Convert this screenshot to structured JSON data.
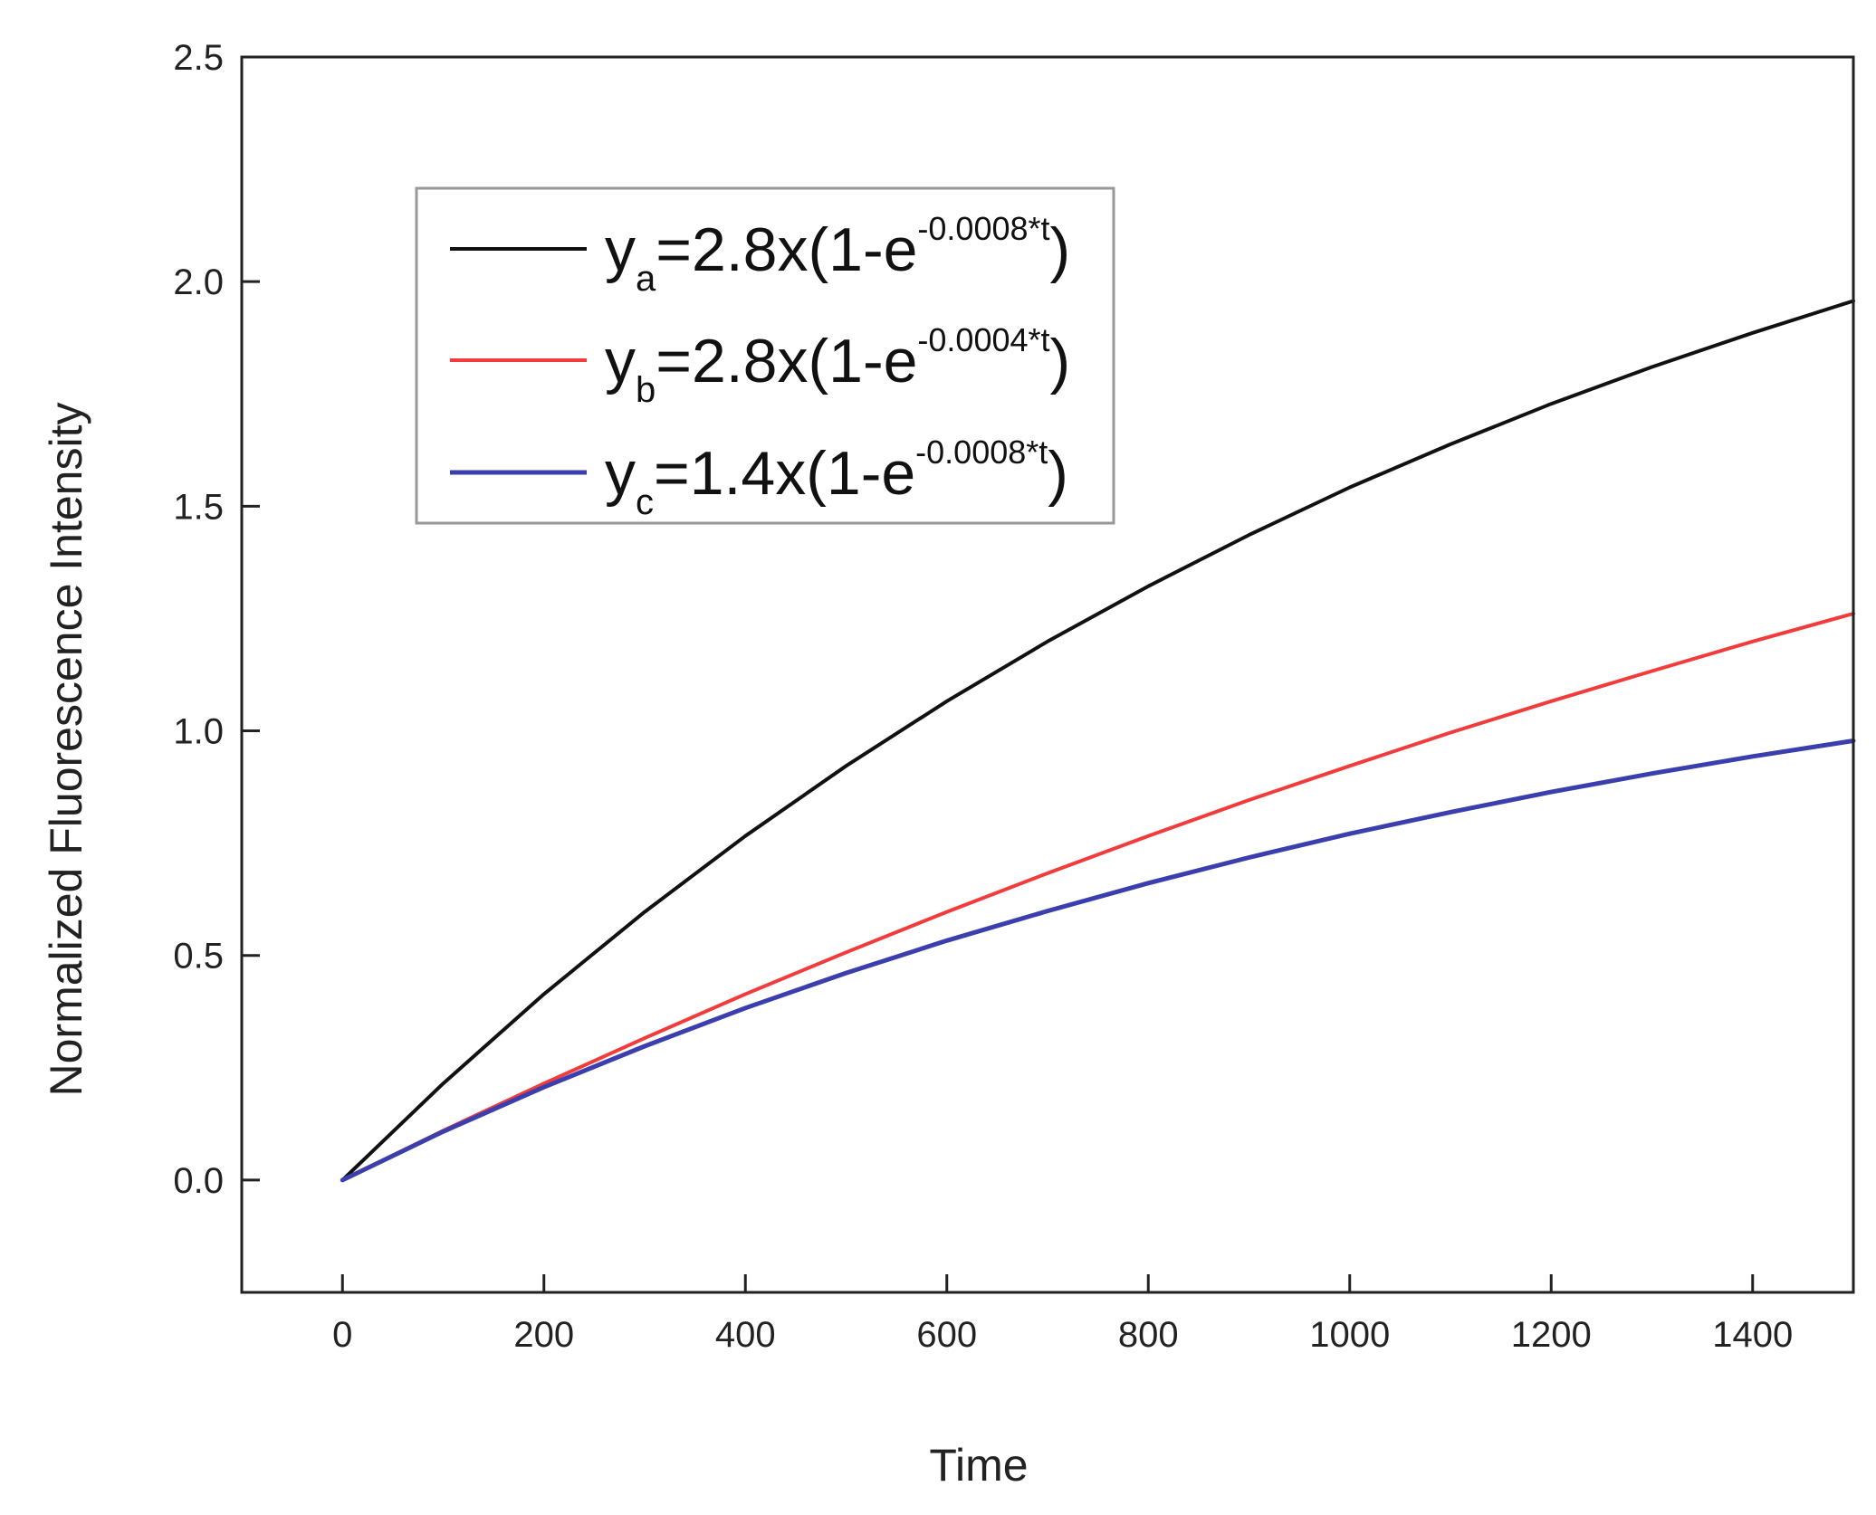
{
  "chart_data": {
    "type": "line",
    "title": "",
    "xlabel": "Time",
    "ylabel": "Normalized Fluorescence Intensity",
    "xlim": [
      -100,
      1500
    ],
    "ylim": [
      -0.25,
      2.5
    ],
    "xticks": [
      0,
      200,
      400,
      600,
      800,
      1000,
      1200,
      1400
    ],
    "xtick_labels": [
      "0",
      "200",
      "400",
      "600",
      "800",
      "1000",
      "1200",
      "1400"
    ],
    "yticks": [
      0.0,
      0.5,
      1.0,
      1.5,
      2.0,
      2.5
    ],
    "ytick_labels": [
      "0.0",
      "0.5",
      "1.0",
      "1.5",
      "2.0",
      "2.5"
    ],
    "grid": false,
    "legend_position": "upper-left",
    "x": [
      0,
      100,
      200,
      300,
      400,
      500,
      600,
      700,
      800,
      900,
      1000,
      1100,
      1200,
      1300,
      1400,
      1500
    ],
    "series": [
      {
        "color": "#111111",
        "legend": {
          "base": "y",
          "sub": "a",
          "main": "=2.8x(1-e",
          "sup": "-0.0008*t",
          "close": ")"
        },
        "values": [
          0.0,
          0.215,
          0.414,
          0.597,
          0.766,
          0.922,
          1.066,
          1.199,
          1.322,
          1.436,
          1.542,
          1.638,
          1.728,
          1.81,
          1.886,
          1.957
        ]
      },
      {
        "color": "#f23c3c",
        "legend": {
          "base": "y",
          "sub": "b",
          "main": "=2.8x(1-e",
          "sup": "-0.0004*t",
          "close": ")"
        },
        "values": [
          0.0,
          0.11,
          0.215,
          0.316,
          0.414,
          0.507,
          0.597,
          0.683,
          0.766,
          0.846,
          0.922,
          0.996,
          1.066,
          1.133,
          1.199,
          1.261
        ]
      },
      {
        "color": "#3b3fae",
        "legend": {
          "base": "y",
          "sub": "c",
          "main": "=1.4x(1-e",
          "sup": "-0.0008*t",
          "close": ")"
        },
        "values": [
          0.0,
          0.108,
          0.207,
          0.298,
          0.383,
          0.461,
          0.533,
          0.599,
          0.661,
          0.718,
          0.771,
          0.819,
          0.864,
          0.905,
          0.943,
          0.978
        ]
      }
    ]
  }
}
